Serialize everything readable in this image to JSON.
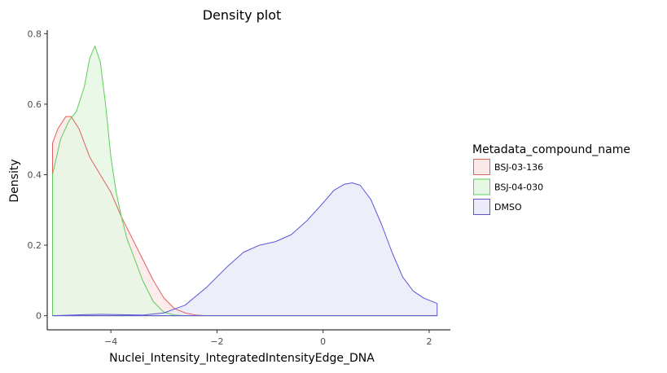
{
  "chart_data": {
    "type": "area",
    "title": "Density plot",
    "xlabel": "Nuclei_Intensity_IntegratedIntensityEdge_DNA",
    "ylabel": "Density",
    "xlim": [
      -5.2,
      2.4
    ],
    "ylim": [
      -0.04,
      0.81
    ],
    "x_ticks": [
      -4,
      -2,
      0,
      2
    ],
    "x_tick_labels": [
      "−4",
      "−2",
      "0",
      "2"
    ],
    "y_ticks": [
      0,
      0.2,
      0.4,
      0.6,
      0.8
    ],
    "y_tick_labels": [
      "0",
      "0.2",
      "0.4",
      "0.6",
      "0.8"
    ],
    "grid": false,
    "legend": {
      "title": "Metadata_compound_name",
      "placement": "right"
    },
    "series": [
      {
        "name": "BSJ-03-136",
        "line_color": "#e0605e",
        "fill_color": "#fbe9e7",
        "x": [
          -5.1,
          -5.1,
          -5.0,
          -4.85,
          -4.75,
          -4.6,
          -4.4,
          -4.2,
          -4.0,
          -3.8,
          -3.6,
          -3.4,
          -3.2,
          -3.0,
          -2.8,
          -2.6,
          -2.4,
          -2.2,
          2.15
        ],
        "y": [
          0,
          0.49,
          0.53,
          0.565,
          0.565,
          0.53,
          0.45,
          0.4,
          0.35,
          0.28,
          0.22,
          0.16,
          0.1,
          0.05,
          0.02,
          0.008,
          0.002,
          0,
          0
        ]
      },
      {
        "name": "BSJ-04-030",
        "line_color": "#5fcc5b",
        "fill_color": "#e6f7e4",
        "x": [
          -5.1,
          -5.1,
          -4.95,
          -4.8,
          -4.65,
          -4.5,
          -4.4,
          -4.3,
          -4.2,
          -4.1,
          -4.0,
          -3.9,
          -3.8,
          -3.7,
          -3.6,
          -3.4,
          -3.2,
          -3.0,
          -2.8,
          -2.6,
          -2.4,
          2.15
        ],
        "y": [
          0,
          0.4,
          0.5,
          0.55,
          0.58,
          0.65,
          0.73,
          0.765,
          0.72,
          0.6,
          0.45,
          0.35,
          0.28,
          0.22,
          0.18,
          0.1,
          0.04,
          0.01,
          0.002,
          0,
          0,
          0
        ]
      },
      {
        "name": "DMSO",
        "line_color": "#5b57d6",
        "fill_color": "#ebebfa",
        "x": [
          -5.1,
          -4.5,
          -4.2,
          -3.8,
          -3.4,
          -3.0,
          -2.6,
          -2.2,
          -1.8,
          -1.5,
          -1.2,
          -0.9,
          -0.6,
          -0.3,
          0.0,
          0.2,
          0.4,
          0.55,
          0.7,
          0.9,
          1.1,
          1.3,
          1.5,
          1.7,
          1.9,
          2.15,
          2.15
        ],
        "y": [
          0,
          0.003,
          0.004,
          0.003,
          0.002,
          0.008,
          0.03,
          0.08,
          0.14,
          0.18,
          0.2,
          0.21,
          0.23,
          0.27,
          0.32,
          0.355,
          0.373,
          0.377,
          0.37,
          0.33,
          0.26,
          0.18,
          0.11,
          0.07,
          0.05,
          0.035,
          0
        ]
      }
    ]
  }
}
